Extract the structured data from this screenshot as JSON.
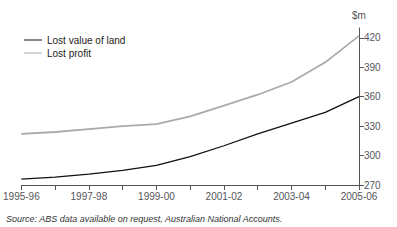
{
  "chart_data": {
    "type": "line",
    "categories": [
      "1995-96",
      null,
      "1997-98",
      null,
      "1999-00",
      null,
      "2001-02",
      null,
      "2003-04",
      null,
      "2005-06"
    ],
    "series": [
      {
        "name": "Lost profit",
        "color": "#aaaaaa",
        "values": [
          322,
          324,
          327,
          330,
          332,
          340,
          351,
          362,
          375,
          395,
          422
        ]
      },
      {
        "name": "Lost value of land",
        "color": "#111111",
        "values": [
          276,
          278,
          281,
          285,
          290,
          299,
          310,
          322,
          333,
          344,
          360
        ]
      }
    ],
    "y_label": "$m",
    "ylim": [
      270,
      430
    ],
    "yticks": [
      270,
      300,
      330,
      360,
      390,
      420
    ],
    "annotations": [
      "Source: ABS data available on request, Australian National Accounts."
    ],
    "legend": "upper left",
    "legend_order": [
      "Lost value of land",
      "Lost profit"
    ],
    "grid": false
  }
}
